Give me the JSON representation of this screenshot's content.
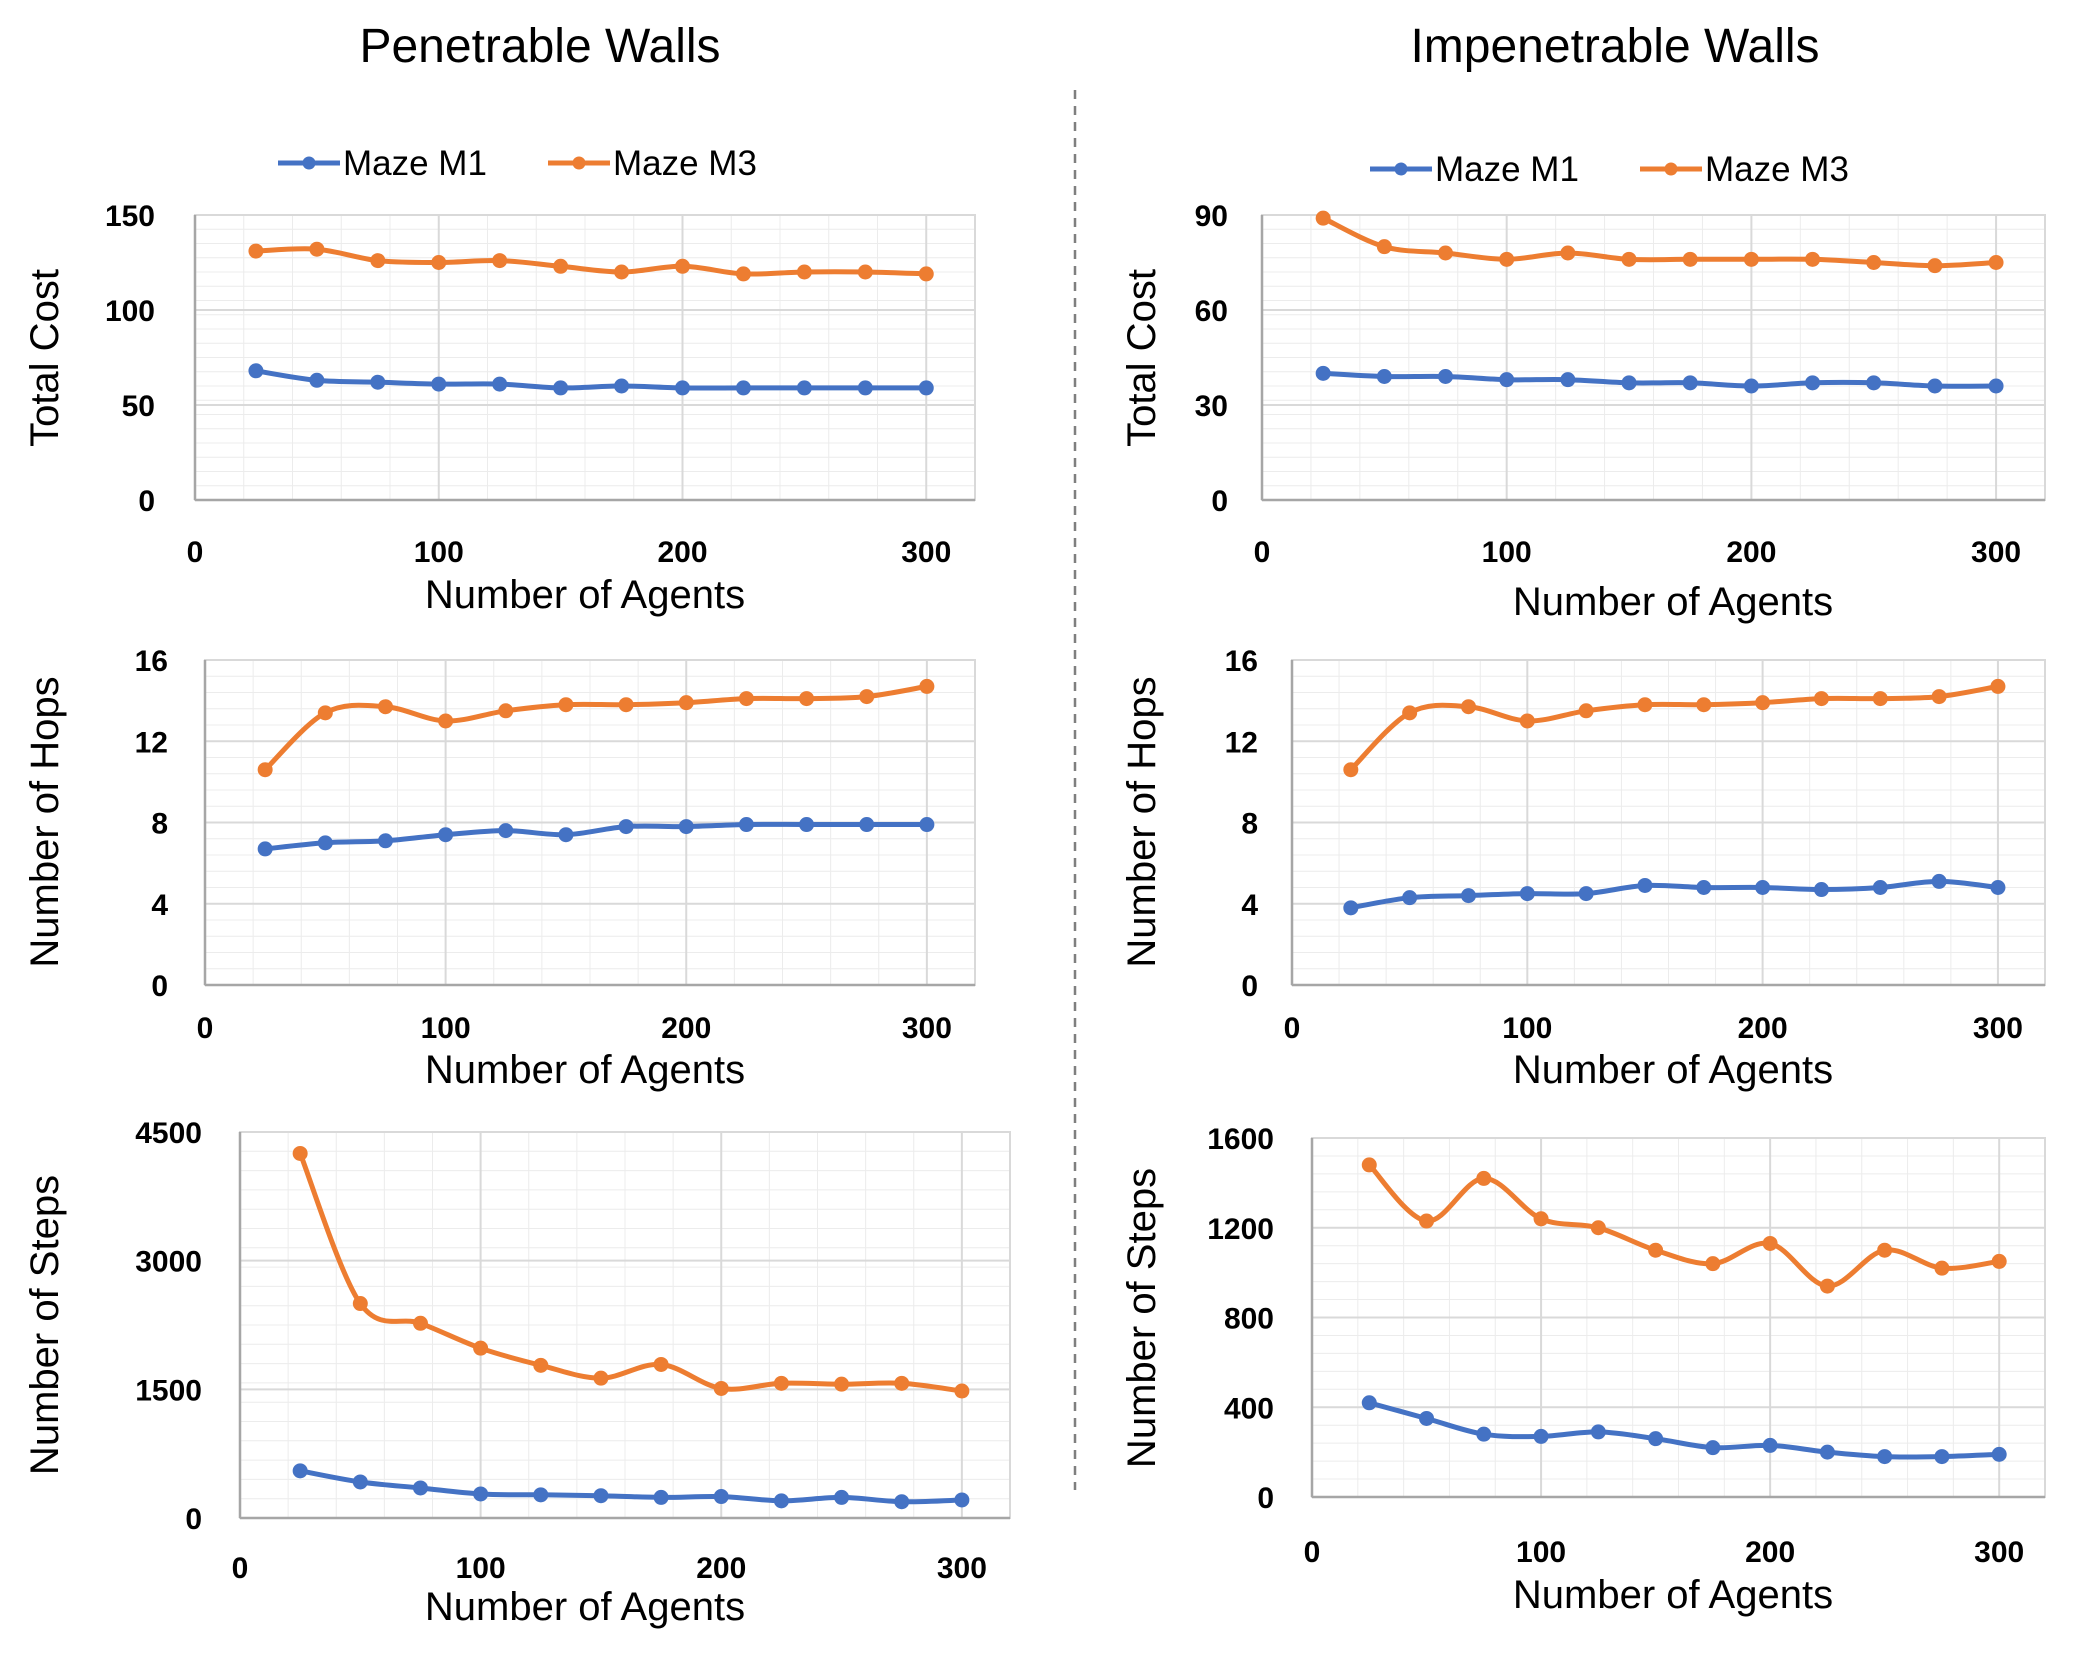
{
  "columns": {
    "left_title": "Penetrable Walls",
    "right_title": "Impenetrable Walls"
  },
  "legend": {
    "m1_label": "Maze M1",
    "m3_label": "Maze M3"
  },
  "colors": {
    "m1": "#4472C4",
    "m3": "#ED7D31",
    "grid": "#D9D9D9",
    "axis": "#BFBFBF"
  },
  "chart_data": [
    {
      "id": "pen-cost",
      "type": "line",
      "column": "Penetrable Walls",
      "xlabel": "Number of Agents",
      "ylabel": "Total Cost",
      "xlim": [
        0,
        320
      ],
      "ylim": [
        0,
        150
      ],
      "xticks": [
        0,
        100,
        200,
        300
      ],
      "yticks": [
        0,
        50,
        100,
        150
      ],
      "x": [
        25,
        50,
        75,
        100,
        125,
        150,
        175,
        200,
        225,
        250,
        275,
        300
      ],
      "series": [
        {
          "name": "Maze M1",
          "values": [
            68,
            63,
            62,
            61,
            61,
            59,
            60,
            59,
            59,
            59,
            59,
            59
          ]
        },
        {
          "name": "Maze M3",
          "values": [
            131,
            132,
            126,
            125,
            126,
            123,
            120,
            123,
            119,
            120,
            120,
            119
          ]
        }
      ]
    },
    {
      "id": "imp-cost",
      "type": "line",
      "column": "Impenetrable Walls",
      "xlabel": "Number of Agents",
      "ylabel": "Total Cost",
      "xlim": [
        0,
        320
      ],
      "ylim": [
        0,
        90
      ],
      "xticks": [
        0,
        100,
        200,
        300
      ],
      "yticks": [
        0,
        30,
        60,
        90
      ],
      "x": [
        25,
        50,
        75,
        100,
        125,
        150,
        175,
        200,
        225,
        250,
        275,
        300
      ],
      "series": [
        {
          "name": "Maze M1",
          "values": [
            40,
            39,
            39,
            38,
            38,
            37,
            37,
            36,
            37,
            37,
            36,
            36
          ]
        },
        {
          "name": "Maze M3",
          "values": [
            89,
            80,
            78,
            76,
            78,
            76,
            76,
            76,
            76,
            75,
            74,
            75
          ]
        }
      ]
    },
    {
      "id": "pen-hops",
      "type": "line",
      "column": "Penetrable Walls",
      "xlabel": "Number of Agents",
      "ylabel": "Number of Hops",
      "xlim": [
        0,
        320
      ],
      "ylim": [
        0,
        16
      ],
      "xticks": [
        0,
        100,
        200,
        300
      ],
      "yticks": [
        0,
        4,
        8,
        12,
        16
      ],
      "x": [
        25,
        50,
        75,
        100,
        125,
        150,
        175,
        200,
        225,
        250,
        275,
        300
      ],
      "series": [
        {
          "name": "Maze M1",
          "values": [
            6.7,
            7.0,
            7.1,
            7.4,
            7.6,
            7.4,
            7.8,
            7.8,
            7.9,
            7.9,
            7.9,
            7.9
          ]
        },
        {
          "name": "Maze M3",
          "values": [
            10.6,
            13.4,
            13.7,
            13.0,
            13.5,
            13.8,
            13.8,
            13.9,
            14.1,
            14.1,
            14.2,
            14.7
          ]
        }
      ]
    },
    {
      "id": "imp-hops",
      "type": "line",
      "column": "Impenetrable Walls",
      "xlabel": "Number of Agents",
      "ylabel": "Number of Hops",
      "xlim": [
        0,
        320
      ],
      "ylim": [
        0,
        16
      ],
      "xticks": [
        0,
        100,
        200,
        300
      ],
      "yticks": [
        0,
        4,
        8,
        12,
        16
      ],
      "x": [
        25,
        50,
        75,
        100,
        125,
        150,
        175,
        200,
        225,
        250,
        275,
        300
      ],
      "series": [
        {
          "name": "Maze M1",
          "values": [
            3.8,
            4.3,
            4.4,
            4.5,
            4.5,
            4.9,
            4.8,
            4.8,
            4.7,
            4.8,
            5.1,
            4.8
          ]
        },
        {
          "name": "Maze M3",
          "values": [
            10.6,
            13.4,
            13.7,
            13.0,
            13.5,
            13.8,
            13.8,
            13.9,
            14.1,
            14.1,
            14.2,
            14.7
          ]
        }
      ]
    },
    {
      "id": "pen-steps",
      "type": "line",
      "column": "Penetrable Walls",
      "xlabel": "Number of Agents",
      "ylabel": "Number of Steps",
      "xlim": [
        0,
        320
      ],
      "ylim": [
        0,
        4500
      ],
      "xticks": [
        0,
        100,
        200,
        300
      ],
      "yticks": [
        0,
        1500,
        3000,
        4500
      ],
      "x": [
        25,
        50,
        75,
        100,
        125,
        150,
        175,
        200,
        225,
        250,
        275,
        300
      ],
      "series": [
        {
          "name": "Maze M1",
          "values": [
            550,
            420,
            350,
            280,
            270,
            260,
            240,
            250,
            200,
            240,
            190,
            210
          ]
        },
        {
          "name": "Maze M3",
          "values": [
            4250,
            2500,
            2270,
            1980,
            1780,
            1630,
            1790,
            1510,
            1570,
            1560,
            1570,
            1480
          ]
        }
      ]
    },
    {
      "id": "imp-steps",
      "type": "line",
      "column": "Impenetrable Walls",
      "xlabel": "Number of Agents",
      "ylabel": "Number of Steps",
      "xlim": [
        0,
        320
      ],
      "ylim": [
        0,
        1600
      ],
      "xticks": [
        0,
        100,
        200,
        300
      ],
      "yticks": [
        0,
        400,
        800,
        1200,
        1600
      ],
      "x": [
        25,
        50,
        75,
        100,
        125,
        150,
        175,
        200,
        225,
        250,
        275,
        300
      ],
      "series": [
        {
          "name": "Maze M1",
          "values": [
            420,
            350,
            280,
            270,
            290,
            260,
            220,
            230,
            200,
            180,
            180,
            190
          ]
        },
        {
          "name": "Maze M3",
          "values": [
            1480,
            1230,
            1420,
            1240,
            1200,
            1100,
            1040,
            1130,
            940,
            1100,
            1020,
            1050
          ]
        }
      ]
    }
  ]
}
